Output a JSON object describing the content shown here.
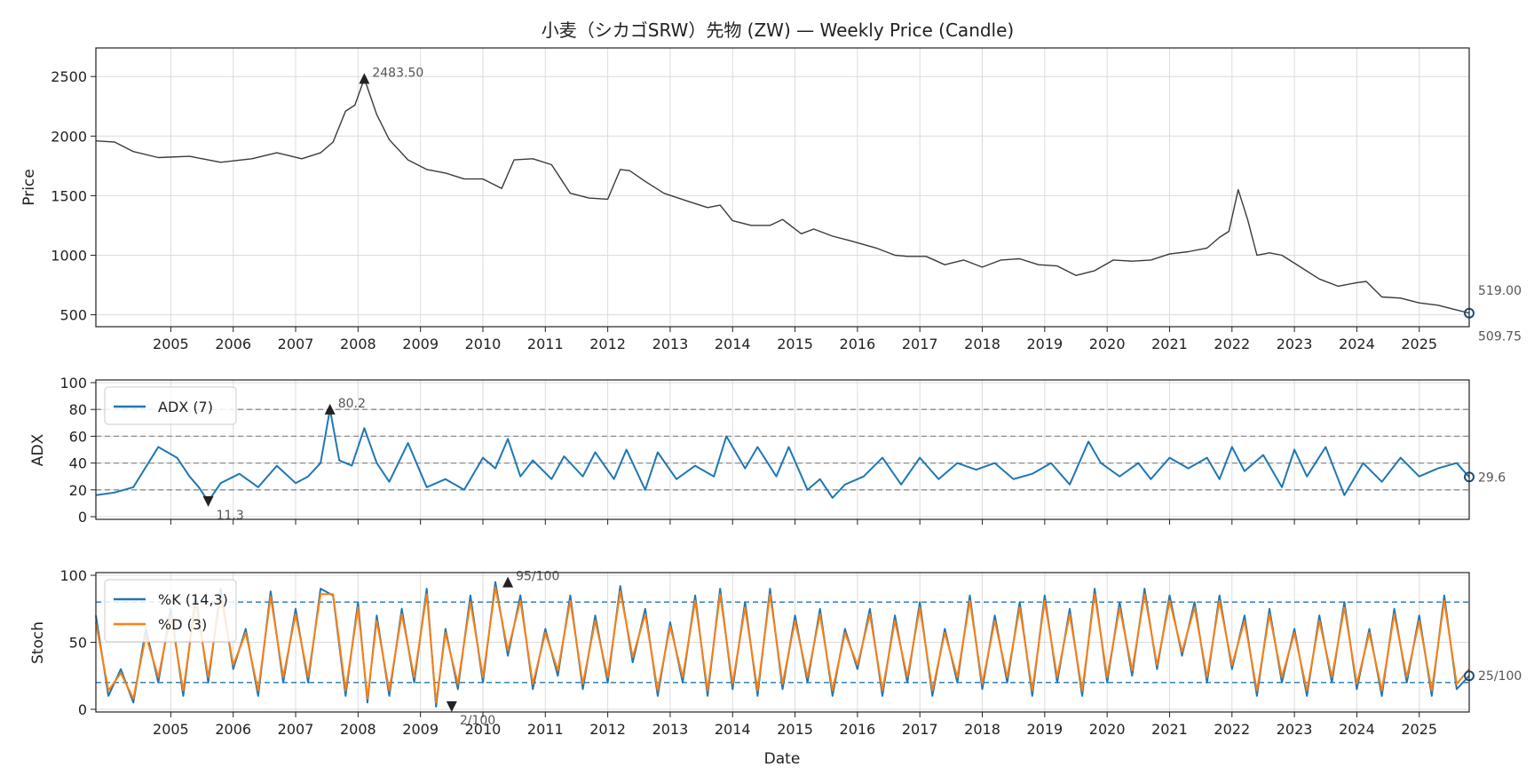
{
  "chart_data": [
    {
      "type": "line",
      "title": "小麦（シカゴSRW）先物 (ZW) — Weekly Price (Candle)",
      "ylabel": "Price",
      "xlabel": "",
      "xlim": [
        2004.0,
        2026.0
      ],
      "ylim": [
        400,
        2740
      ],
      "yticks": [
        500,
        1000,
        1500,
        2000,
        2500
      ],
      "xticks": [
        "2005",
        "2006",
        "2007",
        "2008",
        "2009",
        "2010",
        "2011",
        "2012",
        "2013",
        "2014",
        "2015",
        "2016",
        "2017",
        "2018",
        "2019",
        "2020",
        "2021",
        "2022",
        "2023",
        "2024",
        "2025"
      ],
      "grid": true,
      "series": [
        {
          "color": "#3a3a3a",
          "x": [
            2004.0,
            2004.3,
            2004.6,
            2005.0,
            2005.5,
            2006.0,
            2006.5,
            2006.9,
            2007.3,
            2007.6,
            2007.8,
            2008.0,
            2008.15,
            2008.3,
            2008.5,
            2008.7,
            2009.0,
            2009.3,
            2009.6,
            2009.9,
            2010.2,
            2010.5,
            2010.7,
            2011.0,
            2011.3,
            2011.6,
            2011.9,
            2012.2,
            2012.4,
            2012.55,
            2012.8,
            2013.1,
            2013.5,
            2013.8,
            2014.0,
            2014.2,
            2014.5,
            2014.8,
            2015.0,
            2015.3,
            2015.5,
            2015.8,
            2016.1,
            2016.5,
            2016.8,
            2017.0,
            2017.3,
            2017.6,
            2017.9,
            2018.2,
            2018.5,
            2018.8,
            2019.1,
            2019.4,
            2019.7,
            2020.0,
            2020.3,
            2020.6,
            2020.9,
            2021.2,
            2021.5,
            2021.8,
            2022.0,
            2022.15,
            2022.3,
            2022.45,
            2022.6,
            2022.8,
            2023.0,
            2023.3,
            2023.6,
            2023.9,
            2024.2,
            2024.35,
            2024.6,
            2024.9,
            2025.2,
            2025.5,
            2025.8,
            2026.0
          ],
          "y": [
            1960,
            1950,
            1870,
            1820,
            1830,
            1780,
            1810,
            1860,
            1810,
            1860,
            1950,
            2210,
            2260,
            2483.5,
            2180,
            1970,
            1800,
            1720,
            1690,
            1640,
            1640,
            1560,
            1800,
            1810,
            1760,
            1520,
            1480,
            1470,
            1720,
            1710,
            1620,
            1520,
            1450,
            1400,
            1420,
            1290,
            1250,
            1250,
            1300,
            1180,
            1220,
            1160,
            1120,
            1060,
            1000,
            990,
            990,
            920,
            960,
            900,
            960,
            970,
            920,
            910,
            830,
            870,
            960,
            950,
            960,
            1010,
            1030,
            1060,
            1150,
            1200,
            1550,
            1300,
            1000,
            1020,
            1000,
            900,
            800,
            740,
            770,
            780,
            650,
            640,
            600,
            580,
            540,
            514
          ]
        }
      ],
      "annotations": [
        {
          "x": 2008.3,
          "y": 2483.5,
          "text": "2483.50",
          "marker": "up"
        },
        {
          "x": 2026.0,
          "y": 519.0,
          "text": "519.00"
        },
        {
          "x": 2026.0,
          "y": 509.75,
          "text": "509.75"
        }
      ]
    },
    {
      "type": "line",
      "ylabel": "ADX",
      "xlim": [
        2004.0,
        2026.0
      ],
      "ylim": [
        -2,
        102
      ],
      "yticks": [
        0,
        20,
        40,
        60,
        80,
        100
      ],
      "hlines": [
        20,
        40,
        60,
        80
      ],
      "legend": "top-left",
      "grid": true,
      "series": [
        {
          "name": "ADX (7)",
          "color": "#1f77b4",
          "x": [
            2004.0,
            2004.3,
            2004.6,
            2005.0,
            2005.3,
            2005.5,
            2005.65,
            2005.8,
            2006.0,
            2006.3,
            2006.6,
            2006.9,
            2007.2,
            2007.4,
            2007.6,
            2007.75,
            2007.9,
            2008.1,
            2008.3,
            2008.5,
            2008.7,
            2009.0,
            2009.3,
            2009.6,
            2009.9,
            2010.2,
            2010.4,
            2010.6,
            2010.8,
            2011.0,
            2011.3,
            2011.5,
            2011.8,
            2012.0,
            2012.3,
            2012.5,
            2012.8,
            2013.0,
            2013.3,
            2013.6,
            2013.9,
            2014.1,
            2014.4,
            2014.6,
            2014.9,
            2015.1,
            2015.4,
            2015.6,
            2015.8,
            2016.0,
            2016.3,
            2016.6,
            2016.9,
            2017.2,
            2017.5,
            2017.8,
            2018.1,
            2018.4,
            2018.7,
            2019.0,
            2019.3,
            2019.6,
            2019.9,
            2020.1,
            2020.4,
            2020.7,
            2020.9,
            2021.2,
            2021.5,
            2021.8,
            2022.0,
            2022.2,
            2022.4,
            2022.7,
            2023.0,
            2023.2,
            2023.4,
            2023.7,
            2024.0,
            2024.3,
            2024.6,
            2024.9,
            2025.2,
            2025.5,
            2025.8,
            2026.0
          ],
          "y": [
            16,
            18,
            22,
            52,
            44,
            30,
            22,
            11.3,
            25,
            32,
            22,
            38,
            25,
            30,
            40,
            80.2,
            42,
            38,
            66,
            40,
            26,
            55,
            22,
            28,
            20,
            44,
            36,
            58,
            30,
            42,
            28,
            45,
            30,
            48,
            28,
            50,
            20,
            48,
            28,
            38,
            30,
            60,
            36,
            52,
            30,
            52,
            20,
            28,
            14,
            24,
            30,
            44,
            24,
            44,
            28,
            40,
            35,
            40,
            28,
            32,
            40,
            24,
            56,
            40,
            30,
            40,
            28,
            44,
            36,
            44,
            28,
            52,
            34,
            46,
            22,
            50,
            30,
            52,
            16,
            40,
            26,
            44,
            30,
            36,
            40,
            29.6
          ]
        }
      ],
      "annotations": [
        {
          "x": 2007.75,
          "y": 80.2,
          "text": "80.2",
          "marker": "up"
        },
        {
          "x": 2005.8,
          "y": 11.3,
          "text": "11.3",
          "marker": "down"
        },
        {
          "x": 2026.0,
          "y": 29.6,
          "text": "29.6"
        }
      ]
    },
    {
      "type": "line",
      "ylabel": "Stoch",
      "xlabel": "Date",
      "xlim": [
        2004.0,
        2026.0
      ],
      "ylim": [
        -2,
        102
      ],
      "yticks": [
        0,
        50,
        100
      ],
      "xticks": [
        "2005",
        "2006",
        "2007",
        "2008",
        "2009",
        "2010",
        "2011",
        "2012",
        "2013",
        "2014",
        "2015",
        "2016",
        "2017",
        "2018",
        "2019",
        "2020",
        "2021",
        "2022",
        "2023",
        "2024",
        "2025"
      ],
      "hlines": [
        20,
        80
      ],
      "legend": "top-left",
      "grid": true,
      "series": [
        {
          "name": "%K (14,3)",
          "color": "#1f77b4",
          "x": [
            2004.0,
            2004.2,
            2004.4,
            2004.6,
            2004.8,
            2005.0,
            2005.2,
            2005.4,
            2005.6,
            2005.8,
            2006.0,
            2006.2,
            2006.4,
            2006.6,
            2006.8,
            2007.0,
            2007.2,
            2007.4,
            2007.6,
            2007.8,
            2008.0,
            2008.2,
            2008.35,
            2008.5,
            2008.7,
            2008.9,
            2009.1,
            2009.3,
            2009.45,
            2009.6,
            2009.8,
            2010.0,
            2010.2,
            2010.4,
            2010.6,
            2010.8,
            2011.0,
            2011.2,
            2011.4,
            2011.6,
            2011.8,
            2012.0,
            2012.2,
            2012.4,
            2012.6,
            2012.8,
            2013.0,
            2013.2,
            2013.4,
            2013.6,
            2013.8,
            2014.0,
            2014.2,
            2014.4,
            2014.6,
            2014.8,
            2015.0,
            2015.2,
            2015.4,
            2015.6,
            2015.8,
            2016.0,
            2016.2,
            2016.4,
            2016.6,
            2016.8,
            2017.0,
            2017.2,
            2017.4,
            2017.6,
            2017.8,
            2018.0,
            2018.2,
            2018.4,
            2018.6,
            2018.8,
            2019.0,
            2019.2,
            2019.4,
            2019.6,
            2019.8,
            2020.0,
            2020.2,
            2020.4,
            2020.6,
            2020.8,
            2021.0,
            2021.2,
            2021.4,
            2021.6,
            2021.8,
            2022.0,
            2022.2,
            2022.4,
            2022.6,
            2022.8,
            2023.0,
            2023.2,
            2023.4,
            2023.6,
            2023.8,
            2024.0,
            2024.2,
            2024.4,
            2024.6,
            2024.8,
            2025.0,
            2025.2,
            2025.4,
            2025.6,
            2025.8,
            2026.0
          ],
          "y": [
            70,
            10,
            30,
            5,
            60,
            20,
            75,
            10,
            85,
            20,
            90,
            30,
            60,
            10,
            88,
            20,
            75,
            20,
            90,
            85,
            10,
            80,
            5,
            70,
            10,
            75,
            20,
            90,
            2,
            60,
            15,
            85,
            20,
            95,
            40,
            85,
            15,
            60,
            25,
            85,
            15,
            70,
            20,
            92,
            35,
            75,
            10,
            65,
            20,
            85,
            10,
            90,
            15,
            80,
            10,
            90,
            15,
            70,
            20,
            75,
            10,
            60,
            30,
            75,
            10,
            70,
            20,
            80,
            10,
            60,
            20,
            85,
            15,
            70,
            20,
            80,
            10,
            85,
            20,
            75,
            10,
            90,
            20,
            80,
            25,
            90,
            30,
            85,
            40,
            80,
            20,
            85,
            30,
            70,
            10,
            75,
            20,
            60,
            10,
            70,
            20,
            80,
            15,
            60,
            10,
            75,
            20,
            70,
            10,
            85,
            15,
            25
          ]
        },
        {
          "name": "%D (3)",
          "color": "#ff7f0e",
          "x": [
            2004.0,
            2004.2,
            2004.4,
            2004.6,
            2004.8,
            2005.0,
            2005.2,
            2005.4,
            2005.6,
            2005.8,
            2006.0,
            2006.2,
            2006.4,
            2006.6,
            2006.8,
            2007.0,
            2007.2,
            2007.4,
            2007.6,
            2007.8,
            2008.0,
            2008.2,
            2008.35,
            2008.5,
            2008.7,
            2008.9,
            2009.1,
            2009.3,
            2009.45,
            2009.6,
            2009.8,
            2010.0,
            2010.2,
            2010.4,
            2010.6,
            2010.8,
            2011.0,
            2011.2,
            2011.4,
            2011.6,
            2011.8,
            2012.0,
            2012.2,
            2012.4,
            2012.6,
            2012.8,
            2013.0,
            2013.2,
            2013.4,
            2013.6,
            2013.8,
            2014.0,
            2014.2,
            2014.4,
            2014.6,
            2014.8,
            2015.0,
            2015.2,
            2015.4,
            2015.6,
            2015.8,
            2016.0,
            2016.2,
            2016.4,
            2016.6,
            2016.8,
            2017.0,
            2017.2,
            2017.4,
            2017.6,
            2017.8,
            2018.0,
            2018.2,
            2018.4,
            2018.6,
            2018.8,
            2019.0,
            2019.2,
            2019.4,
            2019.6,
            2019.8,
            2020.0,
            2020.2,
            2020.4,
            2020.6,
            2020.8,
            2021.0,
            2021.2,
            2021.4,
            2021.6,
            2021.8,
            2022.0,
            2022.2,
            2022.4,
            2022.6,
            2022.8,
            2023.0,
            2023.2,
            2023.4,
            2023.6,
            2023.8,
            2024.0,
            2024.2,
            2024.4,
            2024.6,
            2024.8,
            2025.0,
            2025.2,
            2025.4,
            2025.6,
            2025.8,
            2026.0
          ],
          "y": [
            65,
            14,
            27,
            8,
            55,
            24,
            70,
            14,
            80,
            24,
            85,
            33,
            57,
            14,
            84,
            24,
            71,
            24,
            86,
            86,
            14,
            76,
            8,
            66,
            14,
            71,
            24,
            86,
            5,
            57,
            19,
            80,
            24,
            91,
            44,
            81,
            19,
            57,
            29,
            81,
            19,
            66,
            24,
            88,
            39,
            71,
            14,
            62,
            24,
            81,
            14,
            86,
            19,
            76,
            14,
            86,
            19,
            66,
            24,
            71,
            14,
            57,
            33,
            71,
            14,
            66,
            24,
            76,
            14,
            57,
            24,
            81,
            19,
            66,
            24,
            76,
            14,
            81,
            24,
            71,
            14,
            86,
            24,
            76,
            29,
            86,
            33,
            81,
            43,
            76,
            24,
            81,
            33,
            66,
            14,
            71,
            24,
            57,
            14,
            66,
            24,
            76,
            19,
            57,
            14,
            71,
            24,
            66,
            14,
            81,
            19,
            30
          ]
        }
      ],
      "annotations": [
        {
          "x": 2010.6,
          "y": 95,
          "text": "95/100",
          "marker": "up"
        },
        {
          "x": 2009.7,
          "y": 2,
          "text": "2/100",
          "marker": "down"
        },
        {
          "x": 2026.0,
          "y": 25,
          "text": "25/100"
        }
      ]
    }
  ]
}
